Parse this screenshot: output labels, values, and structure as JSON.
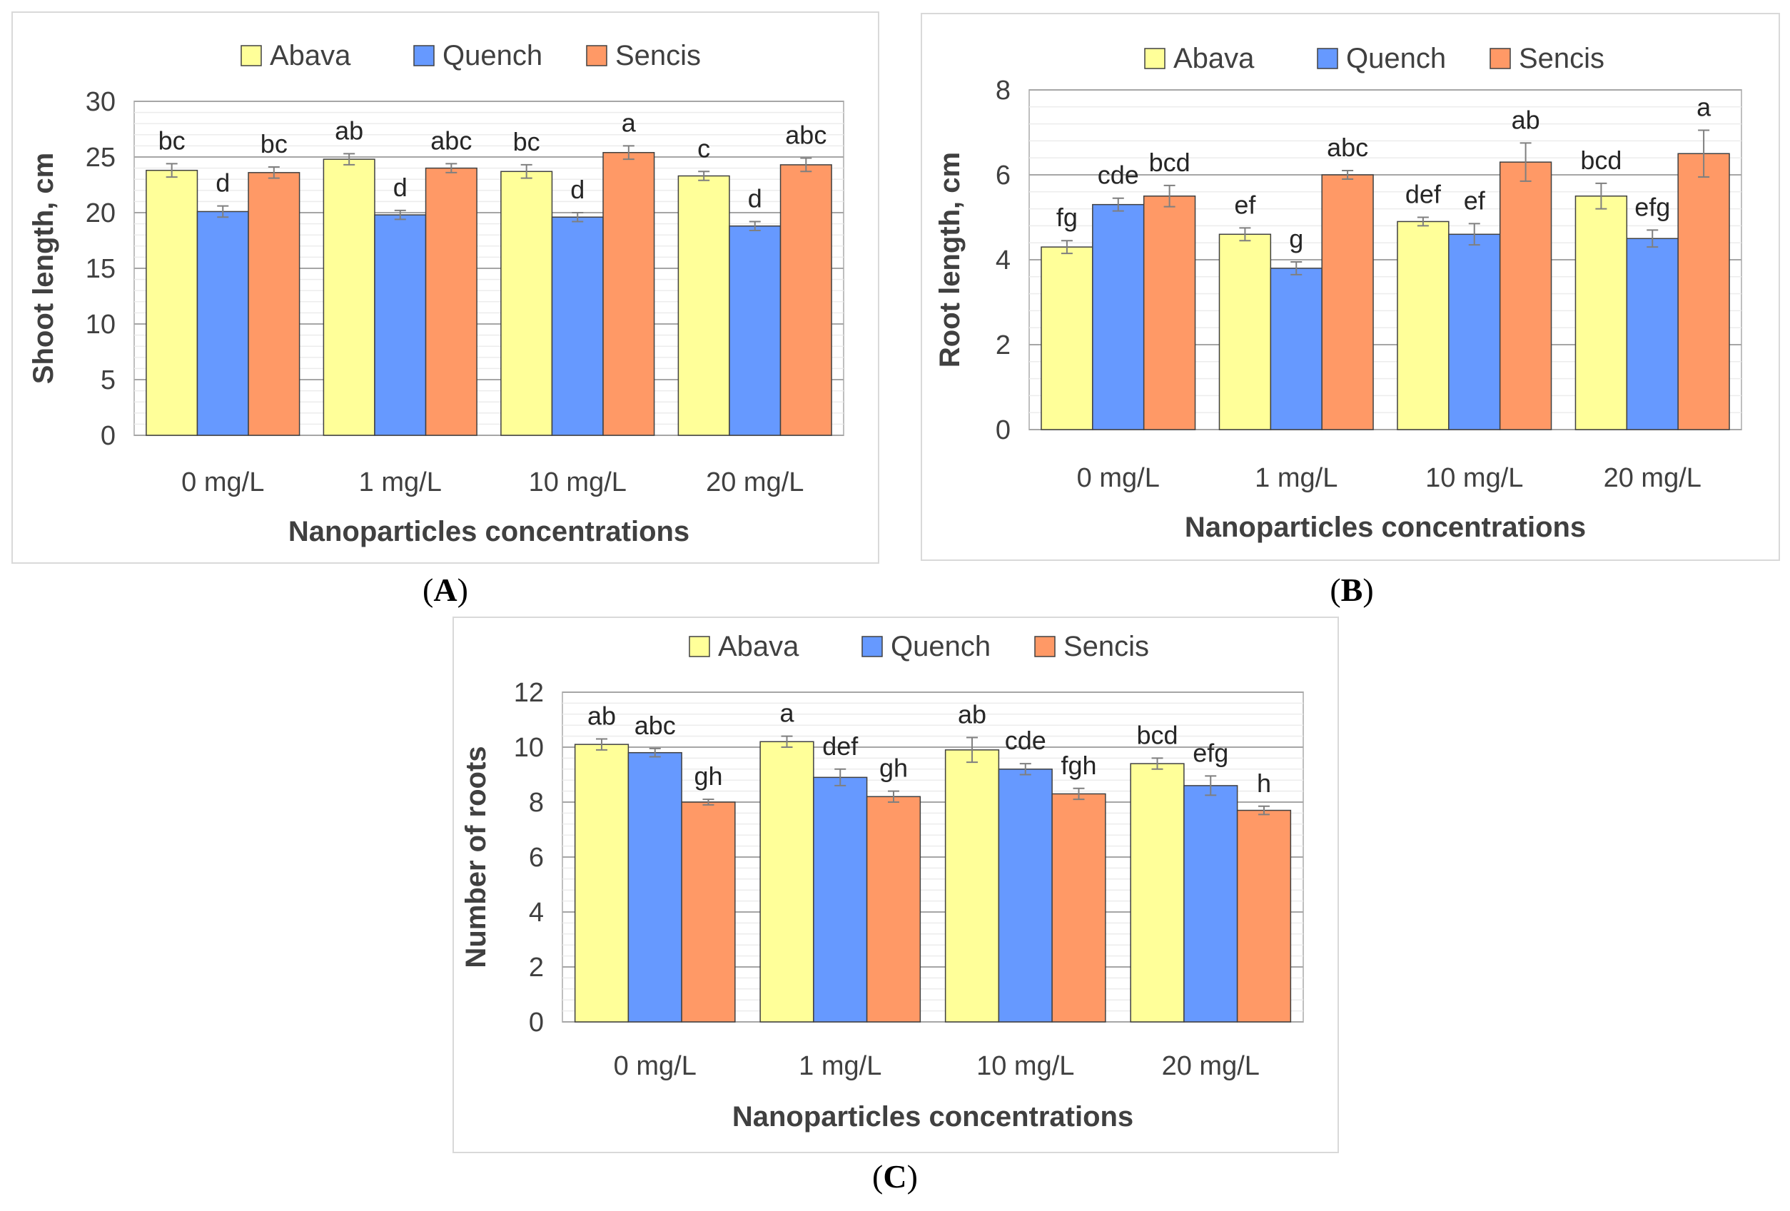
{
  "chart_data": [
    {
      "type": "bar",
      "panel_label": "A",
      "categories": [
        "0 mg/L",
        "1 mg/L",
        "10 mg/L",
        "20 mg/L"
      ],
      "xlabel": "Nanoparticles concentrations",
      "ylabel": "Shoot length, cm",
      "ylim": [
        0,
        30
      ],
      "yticks": [
        "0",
        "5",
        "10",
        "15",
        "20",
        "25",
        "30"
      ],
      "grid": true,
      "legend_position": "top-center",
      "series": [
        {
          "name": "Abava",
          "color": "#ffff99",
          "values": [
            23.8,
            24.8,
            23.7,
            23.3
          ],
          "errors": [
            0.6,
            0.5,
            0.6,
            0.4
          ],
          "letters": [
            "bc",
            "ab",
            "bc",
            "c"
          ]
        },
        {
          "name": "Quench",
          "color": "#6699ff",
          "values": [
            20.1,
            19.8,
            19.6,
            18.8
          ],
          "errors": [
            0.5,
            0.4,
            0.4,
            0.4
          ],
          "letters": [
            "d",
            "d",
            "d",
            "d"
          ]
        },
        {
          "name": "Sencis",
          "color": "#ff9966",
          "values": [
            23.6,
            24.0,
            25.4,
            24.3
          ],
          "errors": [
            0.5,
            0.4,
            0.6,
            0.6
          ],
          "letters": [
            "bc",
            "abc",
            "a",
            "abc"
          ]
        }
      ]
    },
    {
      "type": "bar",
      "panel_label": "B",
      "categories": [
        "0 mg/L",
        "1 mg/L",
        "10 mg/L",
        "20 mg/L"
      ],
      "xlabel": "Nanoparticles concentrations",
      "ylabel": "Root length, cm",
      "ylim": [
        0,
        8
      ],
      "yticks": [
        "0",
        "2",
        "4",
        "6",
        "8"
      ],
      "grid": true,
      "legend_position": "top-center",
      "series": [
        {
          "name": "Abava",
          "color": "#ffff99",
          "values": [
            4.3,
            4.6,
            4.9,
            5.5
          ],
          "errors": [
            0.15,
            0.15,
            0.1,
            0.3
          ],
          "letters": [
            "fg",
            "ef",
            "def",
            "bcd"
          ]
        },
        {
          "name": "Quench",
          "color": "#6699ff",
          "values": [
            5.3,
            3.8,
            4.6,
            4.5
          ],
          "errors": [
            0.15,
            0.15,
            0.25,
            0.2
          ],
          "letters": [
            "cde",
            "g",
            "ef",
            "efg"
          ]
        },
        {
          "name": "Sencis",
          "color": "#ff9966",
          "values": [
            5.5,
            6.0,
            6.3,
            6.5
          ],
          "errors": [
            0.25,
            0.1,
            0.45,
            0.55
          ],
          "letters": [
            "bcd",
            "abc",
            "ab",
            "a"
          ]
        }
      ]
    },
    {
      "type": "bar",
      "panel_label": "C",
      "categories": [
        "0 mg/L",
        "1 mg/L",
        "10 mg/L",
        "20 mg/L"
      ],
      "xlabel": "Nanoparticles concentrations",
      "ylabel": "Number of roots",
      "ylim": [
        0,
        12
      ],
      "yticks": [
        "0",
        "2",
        "4",
        "6",
        "8",
        "10",
        "12"
      ],
      "grid": true,
      "legend_position": "top-center",
      "series": [
        {
          "name": "Abava",
          "color": "#ffff99",
          "values": [
            10.1,
            10.2,
            9.9,
            9.4
          ],
          "errors": [
            0.2,
            0.2,
            0.45,
            0.2
          ],
          "letters": [
            "ab",
            "a",
            "ab",
            "bcd"
          ]
        },
        {
          "name": "Quench",
          "color": "#6699ff",
          "values": [
            9.8,
            8.9,
            9.2,
            8.6
          ],
          "errors": [
            0.15,
            0.3,
            0.2,
            0.35
          ],
          "letters": [
            "abc",
            "def",
            "cde",
            "efg"
          ]
        },
        {
          "name": "Sencis",
          "color": "#ff9966",
          "values": [
            8.0,
            8.2,
            8.3,
            7.7
          ],
          "errors": [
            0.1,
            0.2,
            0.2,
            0.15
          ],
          "letters": [
            "gh",
            "gh",
            "fgh",
            "h"
          ]
        }
      ]
    }
  ]
}
